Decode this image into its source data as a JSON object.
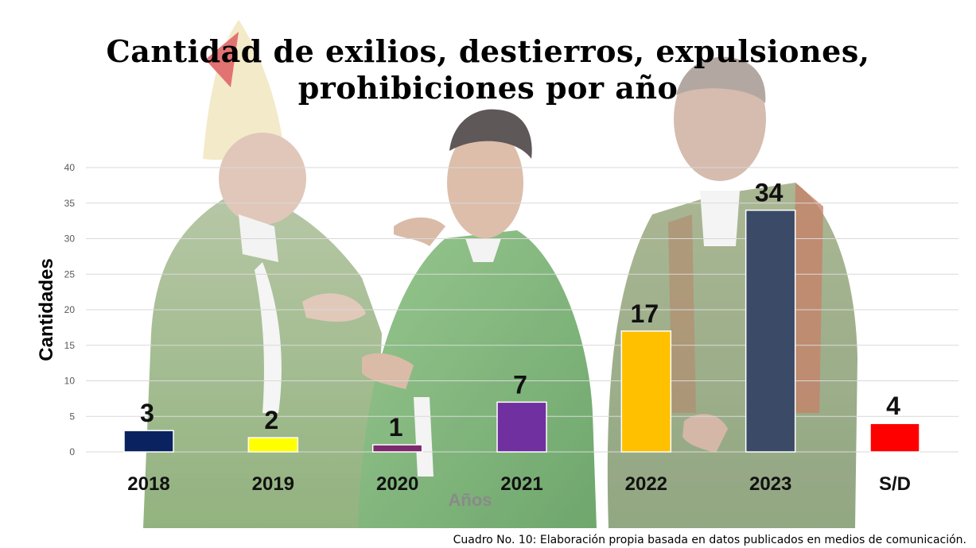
{
  "chart_data": {
    "type": "bar",
    "title_lines": [
      "Cantidad de exilios, destierros, expulsiones,",
      "prohibiciones por año"
    ],
    "xlabel": "Años",
    "ylabel": "Cantidades",
    "categories": [
      "2018",
      "2019",
      "2020",
      "2021",
      "2022",
      "2023",
      "S/D"
    ],
    "values": [
      3,
      2,
      1,
      7,
      17,
      34,
      4
    ],
    "bar_colors": [
      "#0a2260",
      "#ffff00",
      "#7b2a6e",
      "#7030a0",
      "#ffc000",
      "#3b4a66",
      "#ff0000"
    ],
    "ylim": [
      0,
      40
    ],
    "yticks": [
      0,
      5,
      10,
      15,
      20,
      25,
      30,
      35,
      40
    ],
    "grid": true,
    "data_labels": true
  },
  "caption": "Cuadro No. 10: Elaboración propia basada en datos publicados en medios de comunicación."
}
